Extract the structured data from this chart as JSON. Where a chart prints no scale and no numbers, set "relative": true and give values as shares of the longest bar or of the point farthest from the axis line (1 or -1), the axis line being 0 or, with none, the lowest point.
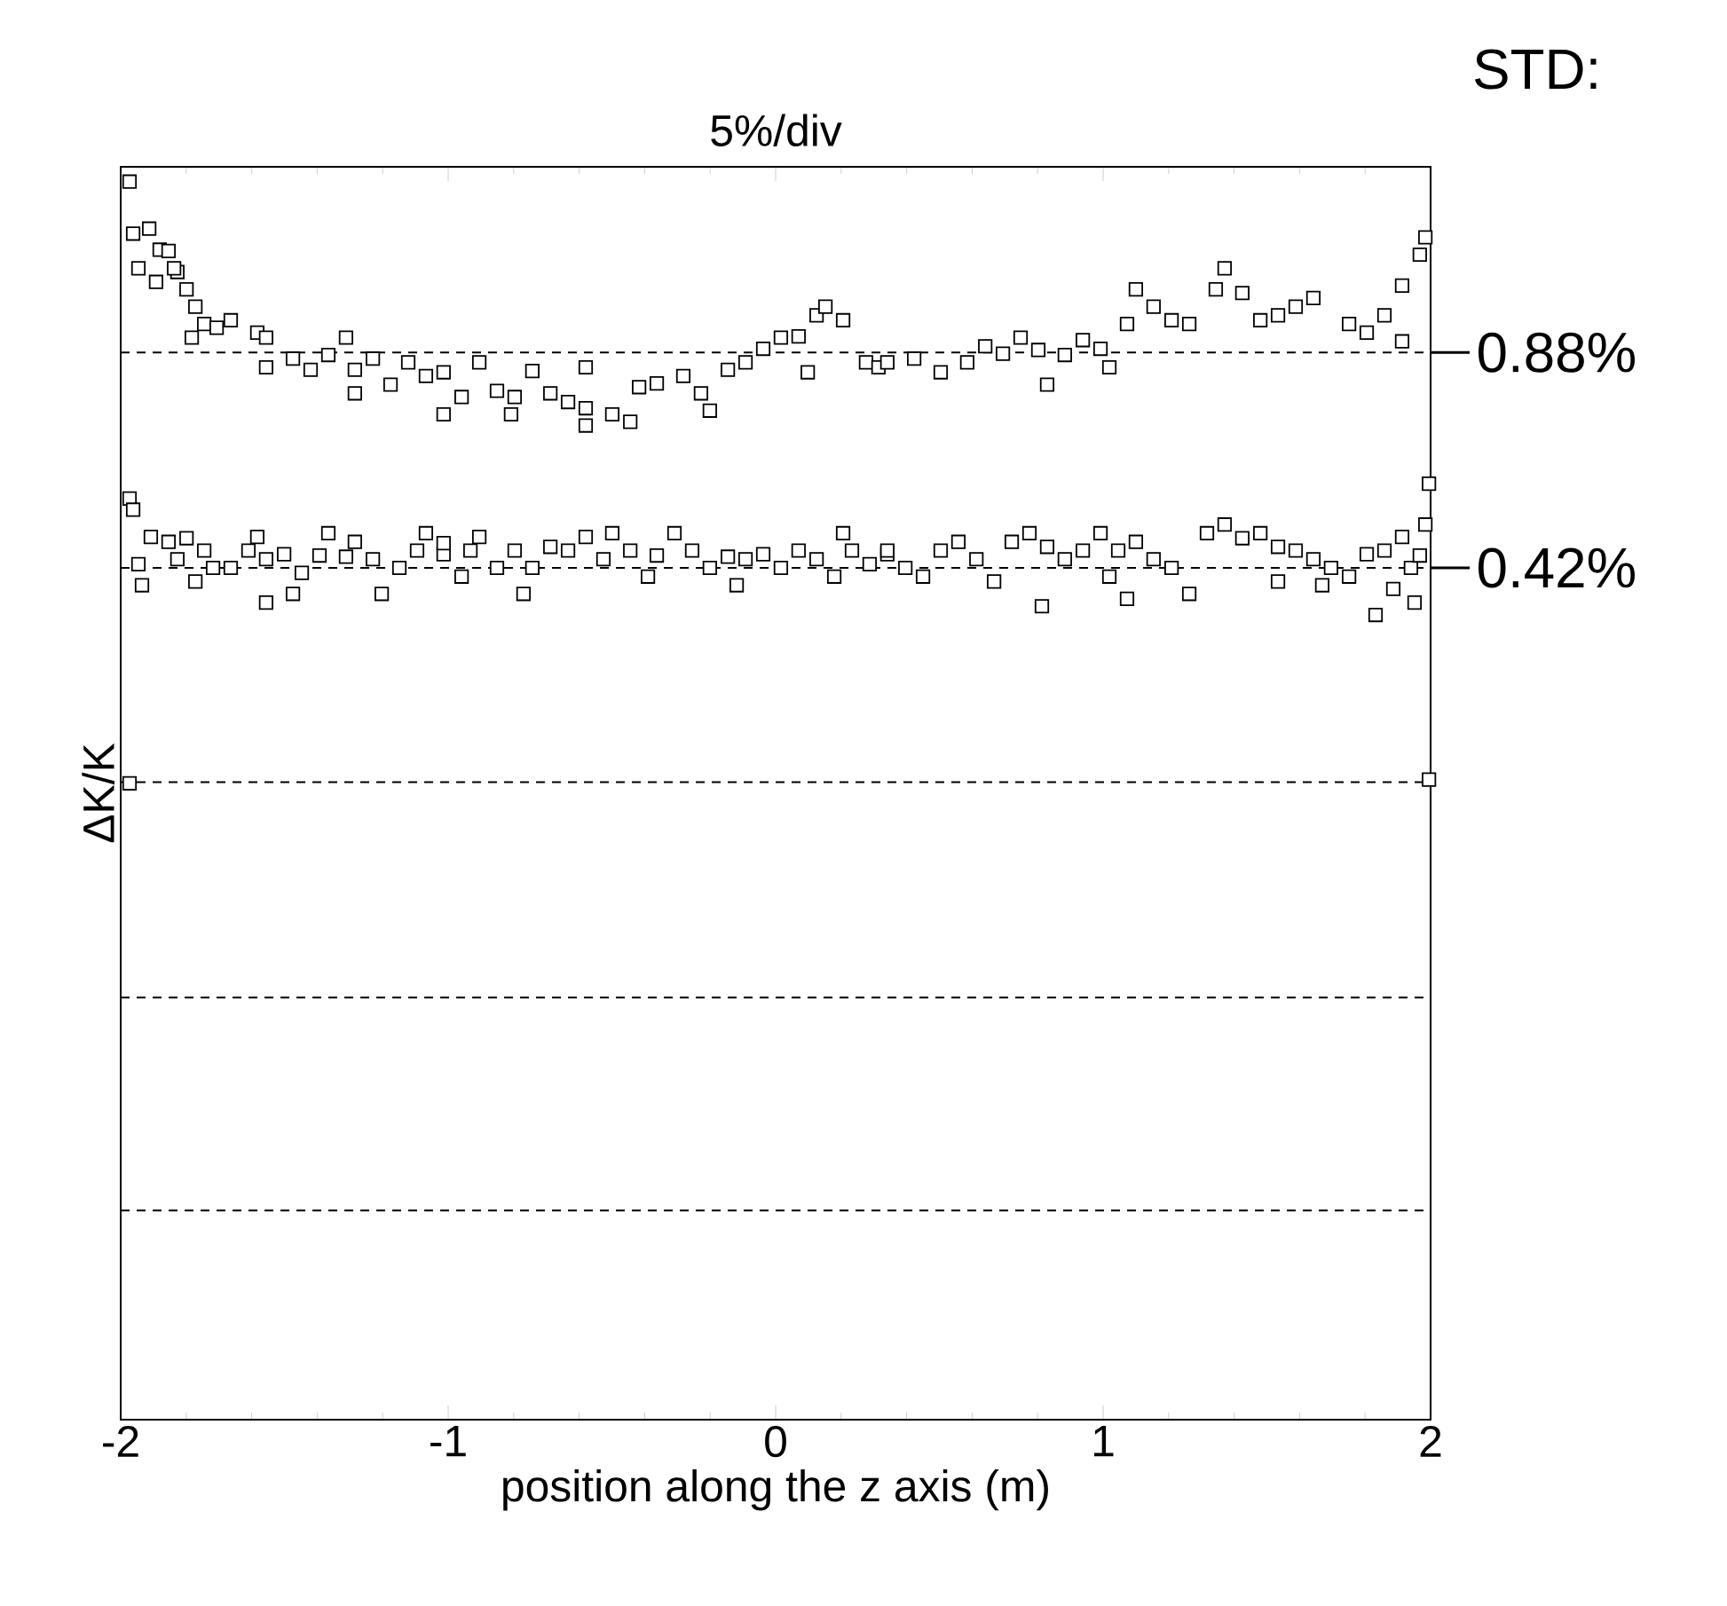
{
  "chart_data": {
    "type": "scatter",
    "title": "5%/div",
    "xlabel": "position along the z axis (m)",
    "ylabel": "ΔK/K",
    "annotations": [
      "STD:",
      "0.88%",
      "0.42%"
    ],
    "relative": true,
    "marker": "square",
    "color": "#000000",
    "xlim": [
      -2,
      2
    ],
    "xticks": [
      -2,
      -1,
      0,
      1,
      2
    ],
    "ref_lines": [
      {
        "axis": "y",
        "value": 0.862,
        "label": null,
        "line_style": "dashed"
      },
      {
        "axis": "y",
        "value": 0.688,
        "label": null,
        "line_style": "dashed"
      },
      {
        "axis": "y",
        "value": 0.515,
        "label": null,
        "line_style": "dashed"
      },
      {
        "axis": "y",
        "value": 0.341,
        "label": null,
        "line_style": "dashed"
      },
      {
        "axis": "y",
        "value": 0.169,
        "label": null,
        "line_style": "dashed"
      }
    ],
    "x": [
      -1.973,
      -1.962,
      -1.913,
      -1.946,
      -1.881,
      -1.854,
      -1.827,
      -1.892,
      -1.837,
      -1.799,
      -1.772,
      -1.745,
      -1.783,
      -1.707,
      -1.664,
      -1.583,
      -1.556,
      -1.474,
      -1.42,
      -1.366,
      -1.312,
      -1.285,
      -1.23,
      -1.176,
      -1.122,
      -1.068,
      -1.014,
      -0.959,
      -0.905,
      -0.851,
      -0.797,
      -0.743,
      -0.688,
      -0.634,
      -0.58,
      -0.499,
      -0.444,
      -0.417,
      -0.363,
      -0.282,
      -0.228,
      -0.146,
      -0.092,
      -0.038,
      0.016,
      0.07,
      0.125,
      0.152,
      0.206,
      0.276,
      0.314,
      0.341,
      0.423,
      0.504,
      0.585,
      0.64,
      0.694,
      0.748,
      0.802,
      0.829,
      0.883,
      0.938,
      0.992,
      1.073,
      1.1,
      1.154,
      1.209,
      1.263,
      1.344,
      1.371,
      1.425,
      1.48,
      1.534,
      1.588,
      1.642,
      1.751,
      1.805,
      1.859,
      1.913,
      1.967,
      1.984,
      1.913,
      1.019,
      0.098,
      -0.58,
      -1.285,
      -1.556,
      -1.014,
      -0.201,
      -0.808,
      -0.58,
      -1.973,
      -1.973,
      1.995,
      1.995,
      -1.962,
      -1.946,
      -1.935,
      -1.908,
      -1.854,
      -1.827,
      -1.799,
      -1.772,
      -1.745,
      -1.718,
      -1.664,
      -1.61,
      -1.583,
      -1.556,
      -1.501,
      -1.474,
      -1.447,
      -1.393,
      -1.366,
      -1.312,
      -1.285,
      -1.23,
      -1.203,
      -1.149,
      -1.095,
      -1.068,
      -1.014,
      -0.959,
      -0.932,
      -0.905,
      -0.851,
      -0.797,
      -0.77,
      -0.743,
      -0.688,
      -0.634,
      -0.58,
      -0.526,
      -0.499,
      -0.444,
      -0.39,
      -0.363,
      -0.309,
      -0.255,
      -0.201,
      -0.146,
      -0.119,
      -0.092,
      -0.038,
      0.016,
      0.07,
      0.125,
      0.179,
      0.206,
      0.233,
      0.287,
      0.341,
      0.396,
      0.45,
      0.504,
      0.558,
      0.613,
      0.667,
      0.721,
      0.775,
      0.813,
      0.829,
      0.883,
      0.938,
      0.992,
      1.019,
      1.046,
      1.073,
      1.1,
      1.154,
      1.209,
      1.263,
      1.317,
      1.371,
      1.425,
      1.48,
      1.534,
      1.588,
      1.642,
      1.669,
      1.696,
      1.751,
      1.805,
      1.832,
      1.859,
      1.913,
      1.94,
      1.967,
      1.984,
      1.951,
      1.886,
      1.534,
      0.341,
      -1.556,
      -1.014
    ],
    "values": [
      1.0,
      0.958,
      0.962,
      0.93,
      0.945,
      0.944,
      0.927,
      0.919,
      0.93,
      0.913,
      0.899,
      0.885,
      0.874,
      0.882,
      0.888,
      0.878,
      0.874,
      0.857,
      0.848,
      0.86,
      0.874,
      0.848,
      0.857,
      0.836,
      0.854,
      0.843,
      0.846,
      0.826,
      0.854,
      0.831,
      0.826,
      0.847,
      0.829,
      0.822,
      0.817,
      0.812,
      0.806,
      0.834,
      0.837,
      0.843,
      0.829,
      0.848,
      0.854,
      0.865,
      0.874,
      0.875,
      0.892,
      0.899,
      0.888,
      0.854,
      0.85,
      0.854,
      0.857,
      0.846,
      0.854,
      0.867,
      0.861,
      0.874,
      0.864,
      0.836,
      0.86,
      0.872,
      0.865,
      0.885,
      0.913,
      0.899,
      0.888,
      0.885,
      0.913,
      0.93,
      0.91,
      0.888,
      0.892,
      0.899,
      0.906,
      0.885,
      0.878,
      0.892,
      0.916,
      0.941,
      0.955,
      0.871,
      0.85,
      0.846,
      0.85,
      0.829,
      0.85,
      0.812,
      0.815,
      0.812,
      0.803,
      0.744,
      0.514,
      0.756,
      0.517,
      0.735,
      0.691,
      0.674,
      0.713,
      0.709,
      0.695,
      0.712,
      0.677,
      0.702,
      0.688,
      0.688,
      0.702,
      0.713,
      0.695,
      0.699,
      0.667,
      0.684,
      0.698,
      0.716,
      0.697,
      0.709,
      0.695,
      0.667,
      0.688,
      0.702,
      0.716,
      0.699,
      0.681,
      0.702,
      0.713,
      0.688,
      0.702,
      0.667,
      0.688,
      0.705,
      0.702,
      0.713,
      0.695,
      0.716,
      0.702,
      0.681,
      0.698,
      0.716,
      0.702,
      0.688,
      0.697,
      0.674,
      0.695,
      0.699,
      0.688,
      0.702,
      0.695,
      0.681,
      0.716,
      0.702,
      0.691,
      0.699,
      0.688,
      0.681,
      0.702,
      0.709,
      0.695,
      0.677,
      0.709,
      0.716,
      0.657,
      0.705,
      0.695,
      0.702,
      0.716,
      0.681,
      0.702,
      0.663,
      0.709,
      0.695,
      0.688,
      0.667,
      0.716,
      0.723,
      0.712,
      0.716,
      0.705,
      0.702,
      0.695,
      0.674,
      0.688,
      0.681,
      0.699,
      0.65,
      0.702,
      0.713,
      0.688,
      0.698,
      0.723,
      0.66,
      0.671,
      0.677,
      0.702,
      0.66,
      0.708
    ]
  }
}
